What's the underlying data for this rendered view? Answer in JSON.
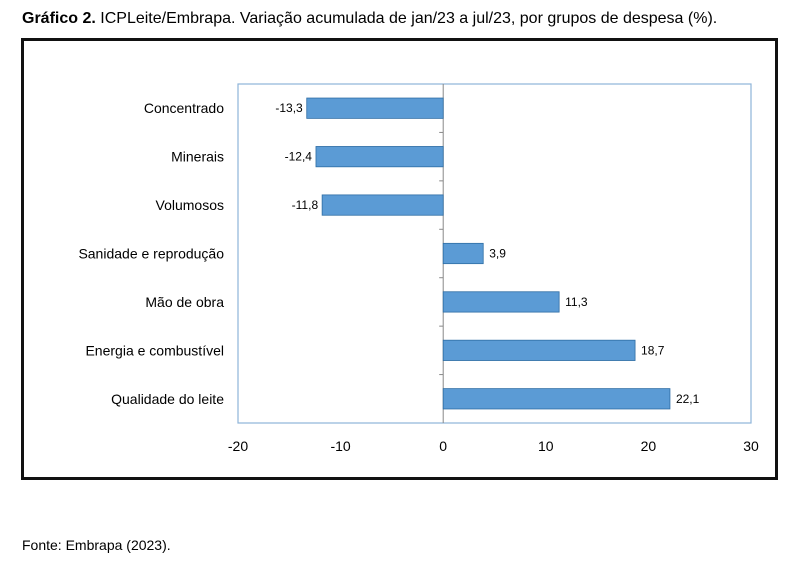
{
  "header": {
    "label": "Gráfico 2.",
    "text": "ICPLeite/Embrapa. Variação acumulada de jan/23 a jul/23, por grupos de despesa (%)."
  },
  "footer": {
    "source": "Fonte: Embrapa (2023)."
  },
  "chart_data": {
    "type": "bar",
    "orientation": "horizontal",
    "categories": [
      "Concentrado",
      "Minerais",
      "Volumosos",
      "Sanidade e reprodução",
      "Mão de obra",
      "Energia e combustível",
      "Qualidade do leite"
    ],
    "values": [
      -13.3,
      -12.4,
      -11.8,
      3.9,
      11.3,
      18.7,
      22.1
    ],
    "value_labels": [
      "-13,3",
      "-12,4",
      "-11,8",
      "3,9",
      "11,3",
      "18,7",
      "22,1"
    ],
    "xlim": [
      -20,
      30
    ],
    "xticks": [
      -20,
      -10,
      0,
      10,
      20,
      30
    ],
    "grid": false,
    "bar_color": "#5B9BD5",
    "bar_edge_color": "#2E6DA4",
    "plot_border_color": "#8EB4D9"
  }
}
